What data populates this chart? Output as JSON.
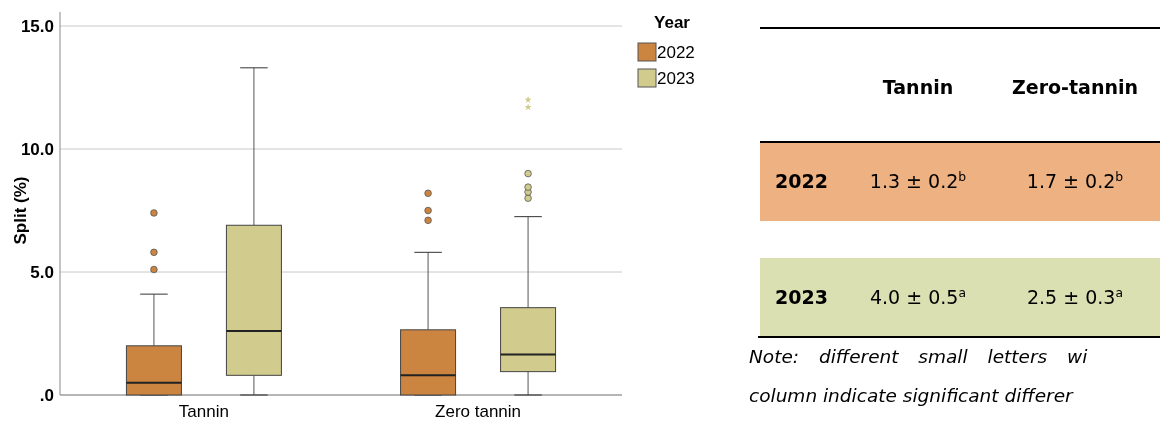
{
  "chart_data": [
    {
      "type": "box",
      "ylabel": "Split (%)",
      "legend_title": "Year",
      "legend": "top right",
      "grid": "y",
      "categories": [
        "Tannin",
        "Zero tannin"
      ],
      "ylim": [
        0,
        15
      ],
      "yticks": [
        {
          "value": 0,
          "label": ".0"
        },
        {
          "value": 5,
          "label": "5.0"
        },
        {
          "value": 10,
          "label": "10.0"
        },
        {
          "value": 15,
          "label": "15.0"
        }
      ],
      "series": [
        {
          "name": "2022",
          "color": "#cc8540",
          "boxes": [
            {
              "low": 0,
              "q1": 0,
              "median": 0.5,
              "q3": 2.0,
              "high": 4.1,
              "outliers": [
                5.1,
                5.8,
                7.4
              ]
            },
            {
              "low": 0,
              "q1": 0,
              "median": 0.8,
              "q3": 2.65,
              "high": 5.8,
              "outliers": [
                7.1,
                7.5,
                8.2
              ]
            }
          ]
        },
        {
          "name": "2023",
          "color": "#d1cb8e",
          "boxes": [
            {
              "low": 0,
              "q1": 0.8,
              "median": 2.6,
              "q3": 6.9,
              "high": 13.3
            },
            {
              "low": 0,
              "q1": 0.95,
              "median": 1.65,
              "q3": 3.55,
              "high": 7.25,
              "outliers": [
                8.0,
                8.25,
                8.45,
                9.0,
                11.7,
                12.0
              ]
            }
          ]
        }
      ]
    },
    {
      "type": "other",
      "categories": [
        "Tannin",
        "Zero-tannin"
      ],
      "y_categories": [
        "2022",
        "2023"
      ],
      "colors": [
        "#eeb182",
        "#dae0b1"
      ],
      "cell_labels": [
        [
          "1.3 ± 0.2$^{b}$",
          "1.7 ± 0.2$^{b}$"
        ],
        [
          "4.0 ± 0.5$^{a}$",
          "2.5 ± 0.3$^{a}$"
        ]
      ],
      "annotations": [
        "Note: different small letters wi",
        "column indicate significant differer"
      ]
    }
  ]
}
